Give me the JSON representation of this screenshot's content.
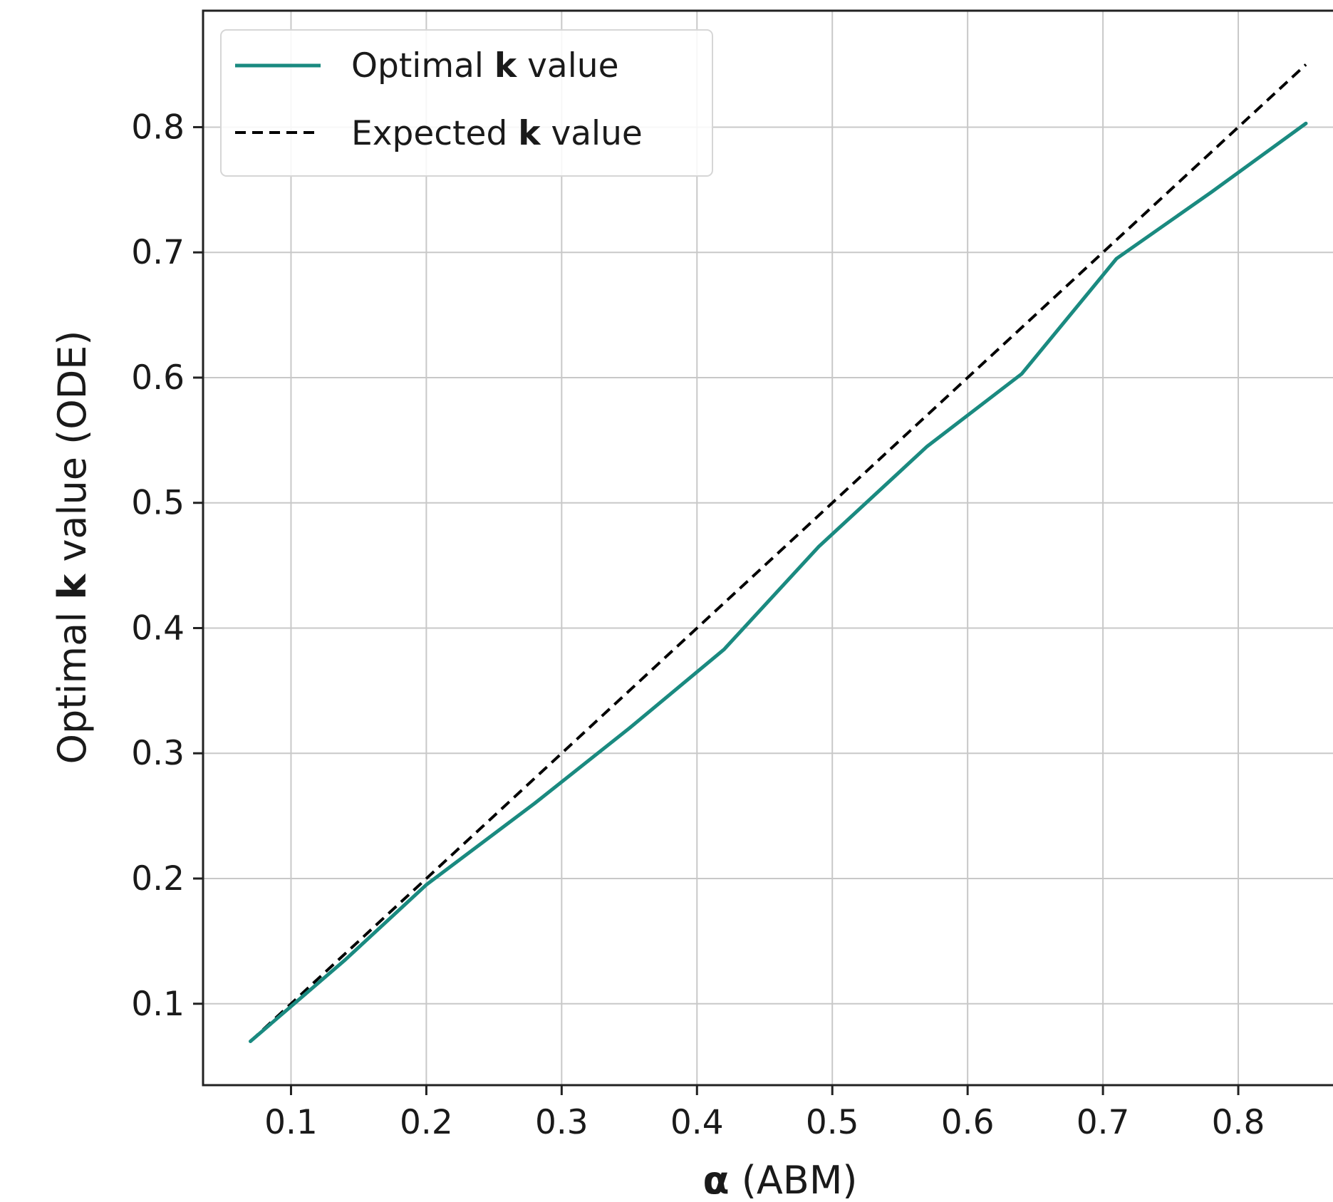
{
  "chart_data": {
    "type": "line",
    "xlabel": {
      "symbol": "α",
      "rest": " (ABM)"
    },
    "ylabel": {
      "prefix": "Optimal ",
      "bold": "k",
      "suffix": " value (ODE)"
    },
    "xlim": [
      0.035,
      0.87
    ],
    "ylim": [
      0.035,
      0.893
    ],
    "xticks": [
      0.1,
      0.2,
      0.3,
      0.4,
      0.5,
      0.6,
      0.7,
      0.8
    ],
    "yticks": [
      0.1,
      0.2,
      0.3,
      0.4,
      0.5,
      0.6,
      0.7,
      0.8
    ],
    "grid": true,
    "legend_position": "top-left",
    "series": [
      {
        "name": "Optimal k value",
        "legend": {
          "prefix": "Optimal ",
          "bold": "k",
          "suffix": " value"
        },
        "style": "solid",
        "color": "#1a8a80",
        "x": [
          0.07,
          0.14,
          0.2,
          0.28,
          0.35,
          0.42,
          0.49,
          0.57,
          0.64,
          0.71,
          0.78,
          0.85
        ],
        "y": [
          0.07,
          0.135,
          0.195,
          0.26,
          0.32,
          0.383,
          0.465,
          0.545,
          0.603,
          0.695,
          0.748,
          0.803
        ]
      },
      {
        "name": "Expected k value",
        "legend": {
          "prefix": "Expected ",
          "bold": "k",
          "suffix": " value"
        },
        "style": "dashed",
        "color": "#000000",
        "x": [
          0.07,
          0.85
        ],
        "y": [
          0.07,
          0.85
        ]
      }
    ]
  }
}
